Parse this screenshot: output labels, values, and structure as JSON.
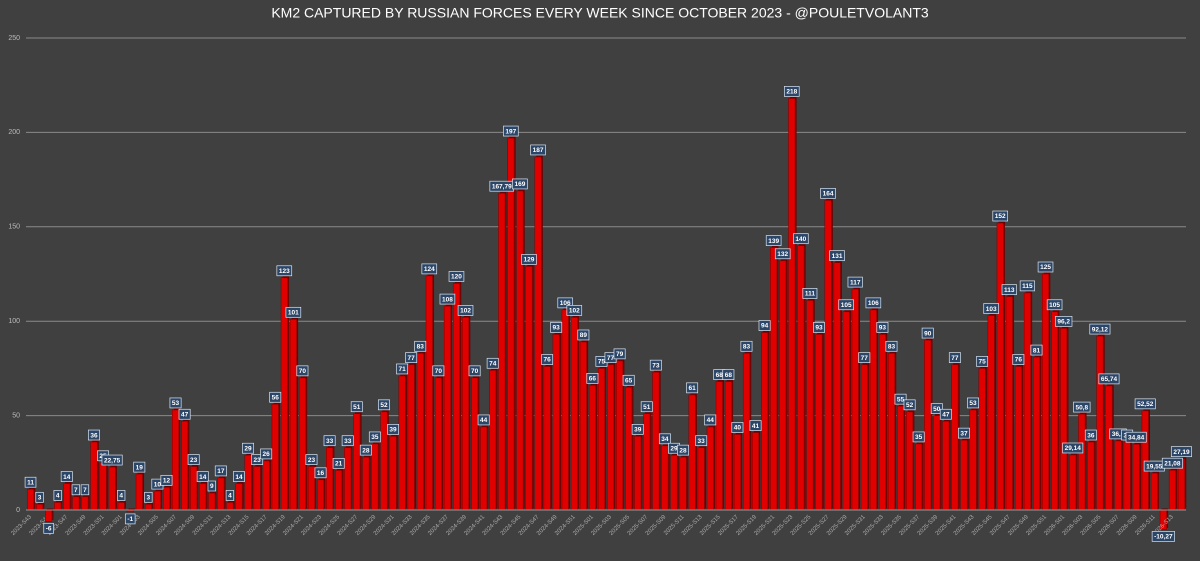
{
  "chart_data": {
    "type": "bar",
    "title": "KM2 CAPTURED BY RUSSIAN FORCES EVERY WEEK SINCE OCTOBER 2023 - @POULETVOLANT3",
    "color": "#e00000",
    "ylim": [
      0,
      250
    ],
    "yticks": [
      0,
      50,
      100,
      150,
      200,
      250
    ],
    "grid": true,
    "categories": [
      "2023-S43",
      null,
      "2023-S45",
      null,
      "2023-S47",
      null,
      "2023-S49",
      null,
      "2023-S51",
      null,
      "2024-S01",
      null,
      "2024-S03",
      null,
      "2024-S05",
      null,
      "2024-S07",
      null,
      "2024-S09",
      null,
      "2024-S11",
      null,
      "2024-S13",
      null,
      "2024-S15",
      null,
      "2024-S17",
      null,
      "2024-S19",
      null,
      "2024-S21",
      null,
      "2024-S23",
      null,
      "2024-S25",
      null,
      "2024-S27",
      null,
      "2024-S29",
      null,
      "2024-S31",
      null,
      "2024-S33",
      null,
      "2024-S35",
      null,
      "2024-S37",
      null,
      "2024-S39",
      null,
      "2024-S41",
      null,
      "2024-S43",
      null,
      "2024-S45",
      null,
      "2024-S47",
      null,
      "2024-S49",
      null,
      "2024-S51",
      null,
      "2025-S01",
      null,
      "2025-S03",
      null,
      "2025-S05",
      null,
      "2025-S07",
      null,
      "2025-S09",
      null,
      "2025-S11",
      null,
      "2025-S13",
      null,
      "2025-S15",
      null,
      "2025-S17",
      null,
      "2025-S19",
      null,
      "2025-S21",
      null,
      "2025-S23",
      null,
      "2025-S25",
      null,
      "2025-S27",
      null,
      "2025-S29",
      null,
      "2025-S31",
      null,
      "2025-S33",
      null,
      "2025-S35",
      null,
      "2025-S37",
      null,
      "2025-S39",
      null,
      "2025-S41",
      null,
      "2025-S43",
      null,
      "2025-S45",
      null,
      "2025-S47",
      null,
      "2025-S49",
      null,
      "2025-S51",
      null,
      "2026-S01",
      null,
      "2026-S03",
      null,
      "2026-S05",
      null,
      "2026-S07",
      null,
      "2026-S09",
      null,
      "2026-S11",
      null,
      "2026-S13",
      null
    ],
    "values": [
      11,
      3,
      -6,
      4,
      14,
      7,
      7,
      36,
      25,
      22.75,
      4,
      -1,
      19,
      3,
      10,
      12,
      53,
      47,
      23,
      14,
      9,
      17,
      4,
      14,
      29,
      23,
      26,
      56,
      123,
      101,
      70,
      23,
      16,
      33,
      21,
      33,
      51,
      28,
      35,
      52,
      39,
      71,
      77,
      83,
      124,
      70,
      108,
      120,
      102,
      70,
      44,
      74,
      167.79,
      197,
      169,
      129,
      187,
      76,
      93,
      106,
      102,
      89,
      66,
      75,
      77,
      79,
      65,
      39,
      51,
      73,
      34,
      29,
      28,
      61,
      33,
      44,
      68,
      68,
      40,
      83,
      41,
      94,
      139,
      132,
      218,
      140,
      111,
      93,
      164,
      131,
      105,
      117,
      77,
      106,
      93,
      83,
      55,
      52,
      35,
      90,
      50,
      47,
      77,
      37,
      53,
      75,
      103,
      152,
      113,
      76,
      115,
      81,
      125,
      105,
      96.2,
      29.14,
      50.8,
      36,
      92.12,
      65.74,
      36.6,
      36,
      34.84,
      52.52,
      19.55,
      -10.27,
      21.08,
      27.19
    ],
    "value_labels": [
      "11",
      "3",
      "-6",
      "4",
      "14",
      "7",
      "7",
      "36",
      "25",
      "22,75",
      "4",
      "-1",
      "19",
      "3",
      "10",
      "12",
      "53",
      "47",
      "23",
      "14",
      "9",
      "17",
      "4",
      "14",
      "29",
      "23",
      "26",
      "56",
      "123",
      "101",
      "70",
      "23",
      "16",
      "33",
      "21",
      "33",
      "51",
      "28",
      "35",
      "52",
      "39",
      "71",
      "77",
      "83",
      "124",
      "70",
      "108",
      "120",
      "102",
      "70",
      "44",
      "74",
      "167,79",
      "197",
      "169",
      "129",
      "187",
      "76",
      "93",
      "106",
      "102",
      "89",
      "66",
      "75",
      "77",
      "79",
      "65",
      "39",
      "51",
      "73",
      "34",
      "29",
      "28",
      "61",
      "33",
      "44",
      "68",
      "68",
      "40",
      "83",
      "41",
      "94",
      "139",
      "132",
      "218",
      "140",
      "111",
      "93",
      "164",
      "131",
      "105",
      "117",
      "77",
      "106",
      "93",
      "83",
      "55",
      "52",
      "35",
      "90",
      "50",
      "47",
      "77",
      "37",
      "53",
      "75",
      "103",
      "152",
      "113",
      "76",
      "115",
      "81",
      "125",
      "105",
      "96,2",
      "29,14",
      "50,8",
      "36",
      "92,12",
      "65,74",
      "36,6",
      "36",
      "34,84",
      "52,52",
      "19,55",
      "-10,27",
      "21,08",
      "27,19"
    ]
  }
}
